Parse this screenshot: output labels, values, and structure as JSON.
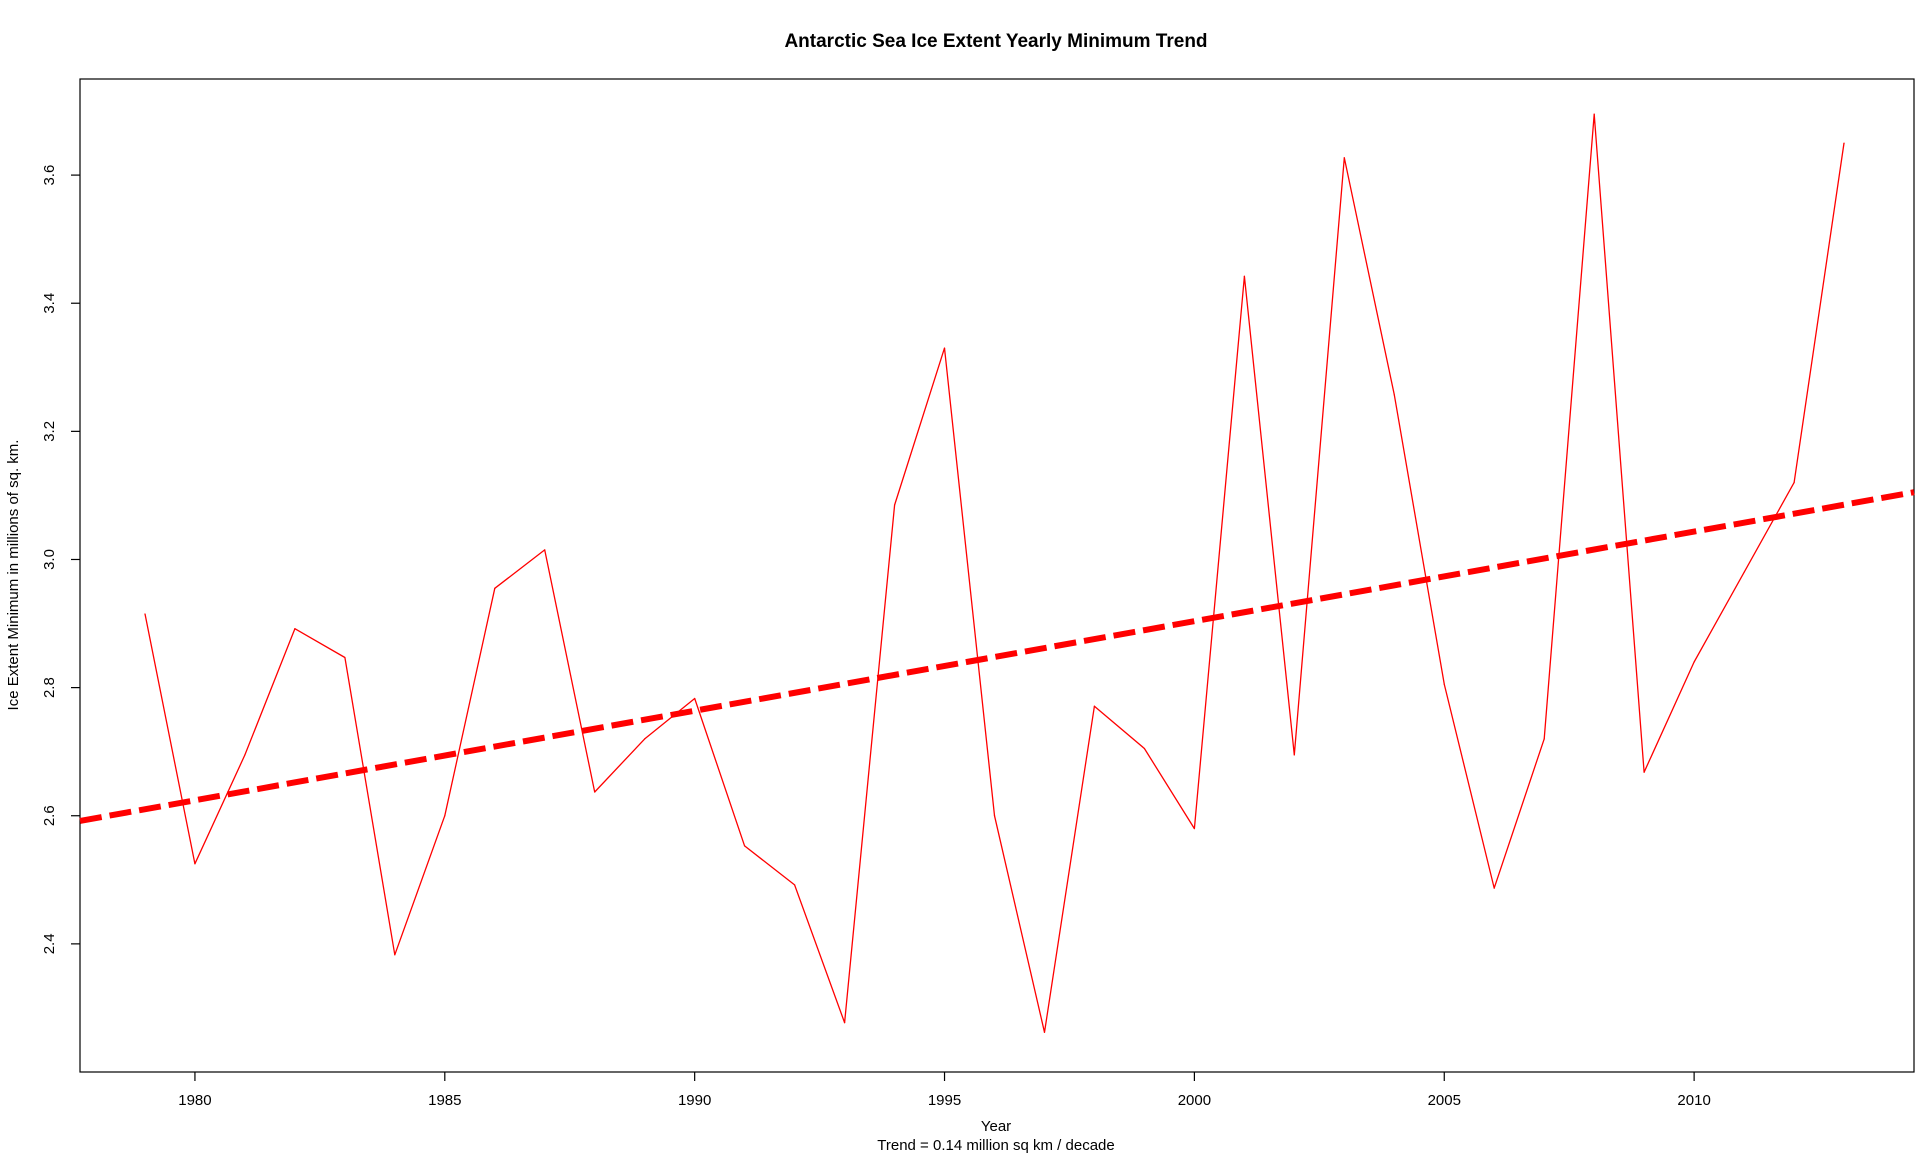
{
  "chart_data": {
    "type": "line",
    "title": "Antarctic Sea Ice Extent Yearly Minimum Trend",
    "xlabel": "Year",
    "subtitle": "Trend = 0.14 million sq km / decade",
    "ylabel": "Ice Extent Minimum in millions of sq. km.",
    "xlim": [
      1977.7,
      2014.4
    ],
    "ylim": [
      2.2,
      3.75
    ],
    "x_ticks": [
      1980,
      1985,
      1990,
      1995,
      2000,
      2005,
      2010
    ],
    "y_ticks": [
      2.4,
      2.6,
      2.8,
      3.0,
      3.2,
      3.4,
      3.6
    ],
    "grid": false,
    "series": [
      {
        "color": "#ff0000",
        "style": "solid",
        "x": [
          1979,
          1980,
          1981,
          1982,
          1983,
          1984,
          1985,
          1986,
          1987,
          1988,
          1989,
          1990,
          1991,
          1992,
          1993,
          1994,
          1995,
          1996,
          1997,
          1998,
          1999,
          2000,
          2001,
          2002,
          2003,
          2004,
          2005,
          2006,
          2007,
          2008,
          2009,
          2010,
          2011,
          2012,
          2013
        ],
        "values": [
          2.915,
          2.525,
          2.695,
          2.892,
          2.847,
          2.383,
          2.6,
          2.955,
          3.015,
          2.637,
          2.72,
          2.783,
          2.553,
          2.492,
          2.277,
          3.085,
          3.33,
          2.6,
          2.262,
          2.771,
          2.705,
          2.58,
          3.442,
          2.695,
          3.627,
          3.257,
          2.805,
          2.487,
          2.72,
          3.695,
          2.668,
          2.84,
          2.98,
          3.12,
          3.65
        ]
      },
      {
        "color": "#ff0000",
        "style": "dashed",
        "x": [
          1977.7,
          2014.4
        ],
        "values": [
          2.592,
          3.105
        ]
      }
    ]
  }
}
